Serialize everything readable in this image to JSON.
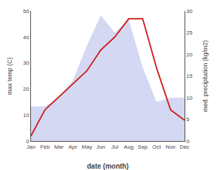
{
  "chart_data": {
    "type": "line",
    "xlabel": "date (month)",
    "ylabel": "max temp (C)",
    "y2label": "med. precipitation (kg/m2)",
    "categories": [
      "Jan",
      "Feb",
      "Mar",
      "Apr",
      "May",
      "Jun",
      "Jul",
      "Aug",
      "Sep",
      "Oct",
      "Nov",
      "Dec"
    ],
    "series": [
      {
        "type": "area",
        "axis": "y2",
        "color": "#b0b8e8",
        "values": [
          8,
          8,
          10,
          14,
          22,
          29,
          25,
          28,
          17,
          9,
          10,
          10
        ]
      },
      {
        "type": "line",
        "color": "#cc2222",
        "values": [
          2,
          12,
          17,
          22,
          27,
          35,
          40,
          47,
          47,
          28,
          12,
          8
        ]
      }
    ],
    "ylim": [
      0,
      50
    ],
    "yticks": [
      0,
      10,
      20,
      30,
      40,
      50
    ],
    "y2lim": [
      0,
      30
    ],
    "y2ticks": [
      0,
      5,
      10,
      15,
      20,
      25,
      30
    ],
    "grid": false
  }
}
